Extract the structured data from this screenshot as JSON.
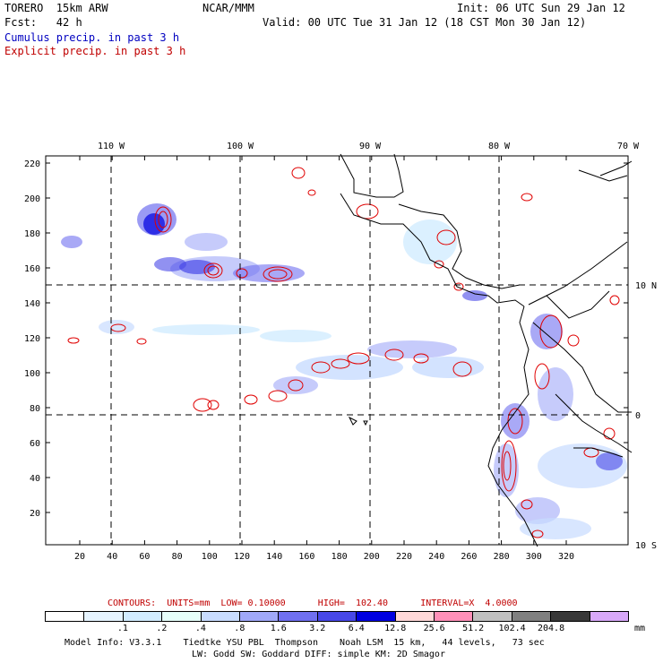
{
  "header": {
    "model": "TORERO  15km ARW",
    "org": "NCAR/MMM",
    "init": "Init: 06 UTC Sun 29 Jan 12",
    "fcst": "Fcst:   42 h",
    "valid": "Valid: 00 UTC Tue 31 Jan 12 (18 CST Mon 30 Jan 12)",
    "line_cumulus": "Cumulus precip. in past 3 h",
    "line_explicit": "Explicit precip. in past 3 h"
  },
  "map": {
    "top_lon_labels": [
      "110 W",
      "100 W",
      "90 W",
      "80 W",
      "70 W"
    ],
    "right_lat_labels": [
      "10 N",
      "0",
      "10 S"
    ],
    "y_ticks": [
      "220",
      "200",
      "180",
      "160",
      "140",
      "120",
      "100",
      "80",
      "60",
      "40",
      "20"
    ],
    "x_ticks": [
      "20",
      "40",
      "60",
      "80",
      "100",
      "120",
      "140",
      "160",
      "180",
      "200",
      "220",
      "240",
      "260",
      "280",
      "300",
      "320"
    ]
  },
  "contours_line": {
    "text": "CONTOURS:  UNITS=mm  LOW= 0.10000      HIGH=  102.40      INTERVAL=X  4.0000"
  },
  "colorbar": {
    "colors": [
      "#ffffff",
      "#e6f4ff",
      "#d2ecff",
      "#e6fffa",
      "#c8dcff",
      "#a0a8f8",
      "#7070f0",
      "#4848e8",
      "#0000e0",
      "#ffd8d8",
      "#ff90b8",
      "#c0c0c0",
      "#808080",
      "#383838",
      "#d8a8f8"
    ],
    "labels": [
      ".1",
      ".2",
      ".4",
      ".8",
      "1.6",
      "3.2",
      "6.4",
      "12.8",
      "25.6",
      "51.2",
      "102.4",
      "204.8"
    ],
    "unit": "mm"
  },
  "footer": {
    "line1": "Model Info: V3.3.1    Tiedtke YSU PBL  Thompson    Noah LSM  15 km,   44 levels,   73 sec",
    "line2": "LW: Godd SW: Goddard DIFF: simple KM: 2D Smagor"
  }
}
